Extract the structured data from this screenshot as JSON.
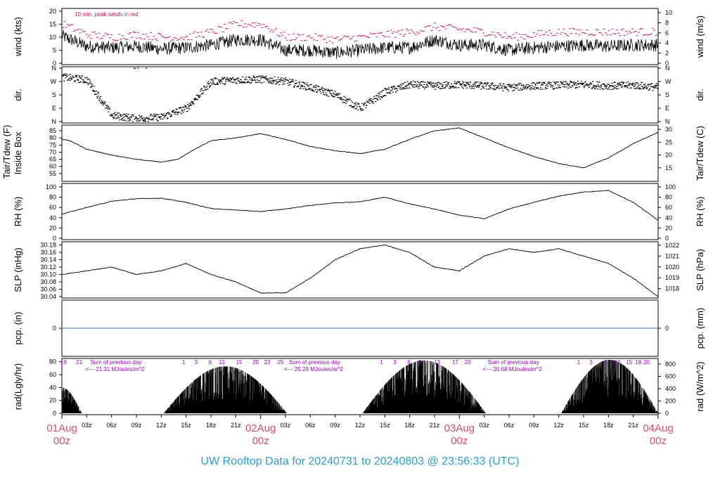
{
  "colors": {
    "peak": "#d81b60",
    "rain": "#3f6fbf",
    "annot": "#9900cc",
    "day": "#d94f6a",
    "footer": "#2a9fd6",
    "trace": "#000000"
  },
  "footer": {
    "text": "UW Rooftop Data for 20240731  to  20240803 @ 23:56:33  (UTC)"
  },
  "chart_data": {
    "type": "line",
    "x_range_hours": [
      0,
      72
    ],
    "hour_ticks": [
      "03z",
      "06z",
      "09z",
      "12z",
      "15z",
      "18z",
      "21z",
      "03z",
      "06z",
      "09z",
      "12z",
      "15z",
      "18z",
      "21z",
      "03z",
      "06z",
      "09z",
      "12z",
      "15z",
      "18z",
      "21z"
    ],
    "hour_tick_positions": [
      3,
      6,
      9,
      12,
      15,
      18,
      21,
      27,
      30,
      33,
      36,
      39,
      42,
      45,
      51,
      54,
      57,
      60,
      63,
      66,
      69
    ],
    "days": [
      {
        "label": "01Aug",
        "sub": "00z",
        "hour": 0
      },
      {
        "label": "02Aug",
        "sub": "00z",
        "hour": 24
      },
      {
        "label": "03Aug",
        "sub": "00z",
        "hour": 48
      },
      {
        "label": "04Aug",
        "sub": "00z",
        "hour": 72
      }
    ],
    "panels": [
      {
        "id": "wind",
        "ylabel_left": "wind (kts)",
        "ylabel_right": "wind (m/s)",
        "ylim": [
          0,
          20.5
        ],
        "ticks_left": [
          0,
          5,
          10,
          15,
          20
        ],
        "ticks_right": [
          0,
          2,
          4,
          6,
          8,
          10
        ],
        "right_factor": 1.94384,
        "annotation": "10 min. peak winds in red",
        "hours": [
          0,
          3,
          6,
          9,
          12,
          15,
          18,
          21,
          24,
          27,
          30,
          33,
          36,
          39,
          42,
          45,
          48,
          51,
          54,
          57,
          60,
          63,
          66,
          69,
          72
        ],
        "values": [
          10.5,
          6.5,
          6,
          6.5,
          5.5,
          6,
          7,
          9,
          9,
          5,
          5,
          4,
          5,
          6,
          6,
          9,
          7,
          7,
          5,
          6,
          6.5,
          7,
          6.5,
          7,
          7
        ],
        "peaks": [
          15,
          11,
          10,
          11,
          10,
          10,
          12,
          15,
          15,
          10,
          10,
          9,
          10,
          11,
          12,
          14,
          13,
          12,
          10,
          11,
          12,
          12,
          12,
          12,
          12
        ]
      },
      {
        "id": "dir",
        "ylabel_left": "dir.",
        "ylabel_right": "dir.",
        "ticks": [
          "N",
          "E",
          "S",
          "W",
          "N"
        ],
        "hours": [
          0,
          3,
          6,
          9,
          12,
          15,
          18,
          21,
          24,
          27,
          30,
          33,
          36,
          39,
          42,
          45,
          48,
          51,
          54,
          57,
          60,
          63,
          66,
          69,
          72
        ],
        "values": [
          300,
          280,
          40,
          20,
          30,
          90,
          270,
          280,
          285,
          270,
          230,
          180,
          90,
          200,
          250,
          240,
          250,
          240,
          230,
          240,
          245,
          250,
          240,
          245,
          230
        ]
      },
      {
        "id": "temp",
        "ylabel_left": "Tair/Tdew (F)",
        "ylabel_left2": "Inside Box",
        "ylabel_right": "Tair/Tdew (C)",
        "ylim": [
          50.5,
          88
        ],
        "ticks_left": [
          55,
          60,
          65,
          70,
          75,
          80,
          85
        ],
        "ticks_right": [
          15,
          20,
          25,
          30
        ],
        "hours": [
          0,
          1,
          3,
          6,
          9,
          12,
          14,
          16,
          18,
          21,
          24,
          27,
          30,
          33,
          36,
          39,
          42,
          45,
          48,
          51,
          54,
          57,
          60,
          63,
          66,
          69,
          72
        ],
        "values": [
          79,
          78,
          72,
          68,
          65,
          63,
          65,
          72,
          78,
          80,
          83,
          79,
          74,
          71,
          69,
          72,
          79,
          85,
          87,
          80,
          73,
          67,
          62,
          59,
          66,
          76,
          84
        ]
      },
      {
        "id": "rh",
        "ylabel_left": "RH (%)",
        "ylabel_right": "RH (%)",
        "ylim": [
          0,
          104
        ],
        "ticks_left": [
          0,
          20,
          40,
          60,
          80,
          100
        ],
        "ticks_right": [
          0,
          20,
          40,
          60,
          80,
          100
        ],
        "hours": [
          0,
          3,
          6,
          9,
          12,
          15,
          18,
          21,
          24,
          27,
          30,
          33,
          36,
          39,
          42,
          45,
          48,
          51,
          54,
          57,
          60,
          63,
          66,
          69,
          72
        ],
        "values": [
          47,
          60,
          72,
          77,
          78,
          70,
          58,
          55,
          52,
          57,
          64,
          69,
          71,
          80,
          67,
          57,
          45,
          38,
          57,
          70,
          82,
          90,
          93,
          70,
          35
        ]
      },
      {
        "id": "slp",
        "ylabel_left": "SLP (inHg)",
        "ylabel_right": "SLP (hPa)",
        "ylim": [
          30.04,
          30.185
        ],
        "ticks_left": [
          30.04,
          30.06,
          30.08,
          30.1,
          30.12,
          30.14,
          30.16,
          30.18
        ],
        "ticks_right": [
          1018,
          1019,
          1020,
          1021,
          1022
        ],
        "hours": [
          0,
          3,
          6,
          9,
          12,
          15,
          18,
          21,
          24,
          27,
          30,
          33,
          36,
          39,
          42,
          45,
          48,
          51,
          54,
          57,
          60,
          63,
          66,
          69,
          72
        ],
        "values": [
          30.1,
          30.11,
          30.12,
          30.1,
          30.11,
          30.13,
          30.1,
          30.08,
          30.05,
          30.05,
          30.09,
          30.14,
          30.17,
          30.18,
          30.16,
          30.12,
          30.11,
          30.15,
          30.17,
          30.16,
          30.17,
          30.15,
          30.13,
          30.09,
          30.04
        ]
      },
      {
        "id": "pcp",
        "ylabel_left": "pcp. (in)",
        "ylabel_right": "pcp. (mm)",
        "ticks_left": [
          "0"
        ],
        "ticks_right": [
          "0"
        ],
        "value": 0
      },
      {
        "id": "rad",
        "ylabel_left": "rad(Lgly/hr)",
        "ylabel_right": "rad (W/m^2)",
        "ylim": [
          0,
          83
        ],
        "ticks_left": [
          0,
          20,
          40,
          60,
          80
        ],
        "ticks_right": [
          0,
          200,
          400,
          600,
          800
        ],
        "annotations": [
          {
            "top": "Sum of previous day",
            "bottom": "<--- 21.31 MJoules/m^2",
            "hour": 3
          },
          {
            "top": "Sum of previous day",
            "bottom": "<--- 25.29 MJoules/m^2",
            "hour": 27
          },
          {
            "top": "Sum of previous day",
            "bottom": "<--- 20.68 MJoules/m^2",
            "hour": 51
          }
        ],
        "hour_marks": [
          "19",
          "21",
          "1",
          "3",
          "6",
          "10",
          "15",
          "20",
          "23",
          "25",
          "1",
          "3",
          "6",
          "9",
          "13",
          "17",
          "20",
          "1",
          "3",
          "6",
          "10",
          "15",
          "18",
          "20"
        ],
        "hour_mark_positions": [
          0.2,
          2.1,
          14.7,
          16.2,
          17.9,
          19.3,
          21.4,
          23.4,
          24.8,
          26.4,
          38.6,
          40.2,
          41.9,
          43.2,
          45.3,
          47.5,
          49,
          62.4,
          63.9,
          65.6,
          67.1,
          68.5,
          69.6,
          70.6
        ],
        "days": [
          {
            "start": 0,
            "end": 2.4,
            "peak": 40
          },
          {
            "start": 12.3,
            "end": 27.2,
            "peak": 73
          },
          {
            "start": 36.3,
            "end": 51.2,
            "peak": 82
          },
          {
            "start": 60.3,
            "end": 72,
            "peak": 83
          }
        ]
      }
    ]
  }
}
